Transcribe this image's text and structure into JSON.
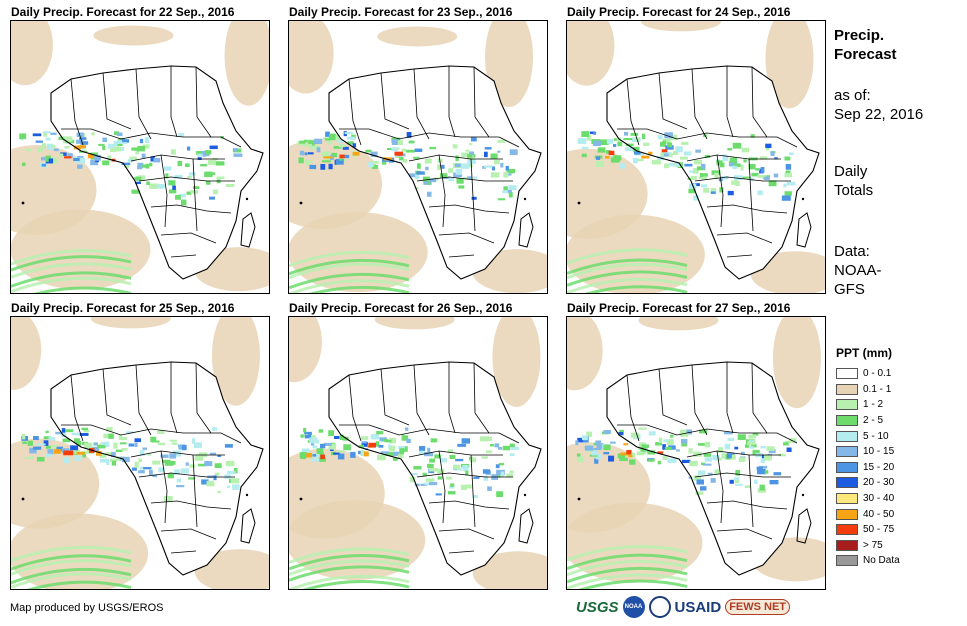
{
  "panels": [
    {
      "title": "Daily Precip. Forecast for 22 Sep., 2016"
    },
    {
      "title": "Daily Precip. Forecast for 23 Sep., 2016"
    },
    {
      "title": "Daily Precip. Forecast for 24 Sep., 2016"
    },
    {
      "title": "Daily Precip. Forecast for 25 Sep., 2016"
    },
    {
      "title": "Daily Precip. Forecast for 26 Sep., 2016"
    },
    {
      "title": "Daily Precip. Forecast for 27 Sep., 2016"
    }
  ],
  "sidebar": {
    "title_line1": "Precip.",
    "title_line2": "Forecast",
    "asof_label": "as of:",
    "asof_date": "Sep 22, 2016",
    "totals_line1": "Daily",
    "totals_line2": "Totals",
    "data_line1": "Data:",
    "data_line2": "NOAA-",
    "data_line3": "GFS"
  },
  "legend": {
    "title": "PPT (mm)",
    "items": [
      {
        "label": "0 - 0.1",
        "color": "#ffffff"
      },
      {
        "label": "0.1 - 1",
        "color": "#e8d4b4"
      },
      {
        "label": "1 - 2",
        "color": "#b8f0b0"
      },
      {
        "label": "2 - 5",
        "color": "#6cdc6c"
      },
      {
        "label": "5 - 10",
        "color": "#b4ecf0"
      },
      {
        "label": "10 - 15",
        "color": "#84b8e8"
      },
      {
        "label": "15 - 20",
        "color": "#4c94e4"
      },
      {
        "label": "20 - 30",
        "color": "#1c5ce0"
      },
      {
        "label": "30 - 40",
        "color": "#fce87c"
      },
      {
        "label": "40 - 50",
        "color": "#f8a414"
      },
      {
        "label": "50 - 75",
        "color": "#f43c0c"
      },
      {
        "label": "> 75",
        "color": "#a81c1c"
      },
      {
        "label": "No Data",
        "color": "#999999"
      }
    ]
  },
  "footer": {
    "credit": "Map produced by USGS/EROS",
    "logos": {
      "usgs": "USGS",
      "noaa": "NOAA",
      "usaid": "USAID",
      "fews": "FEWS NET"
    }
  }
}
